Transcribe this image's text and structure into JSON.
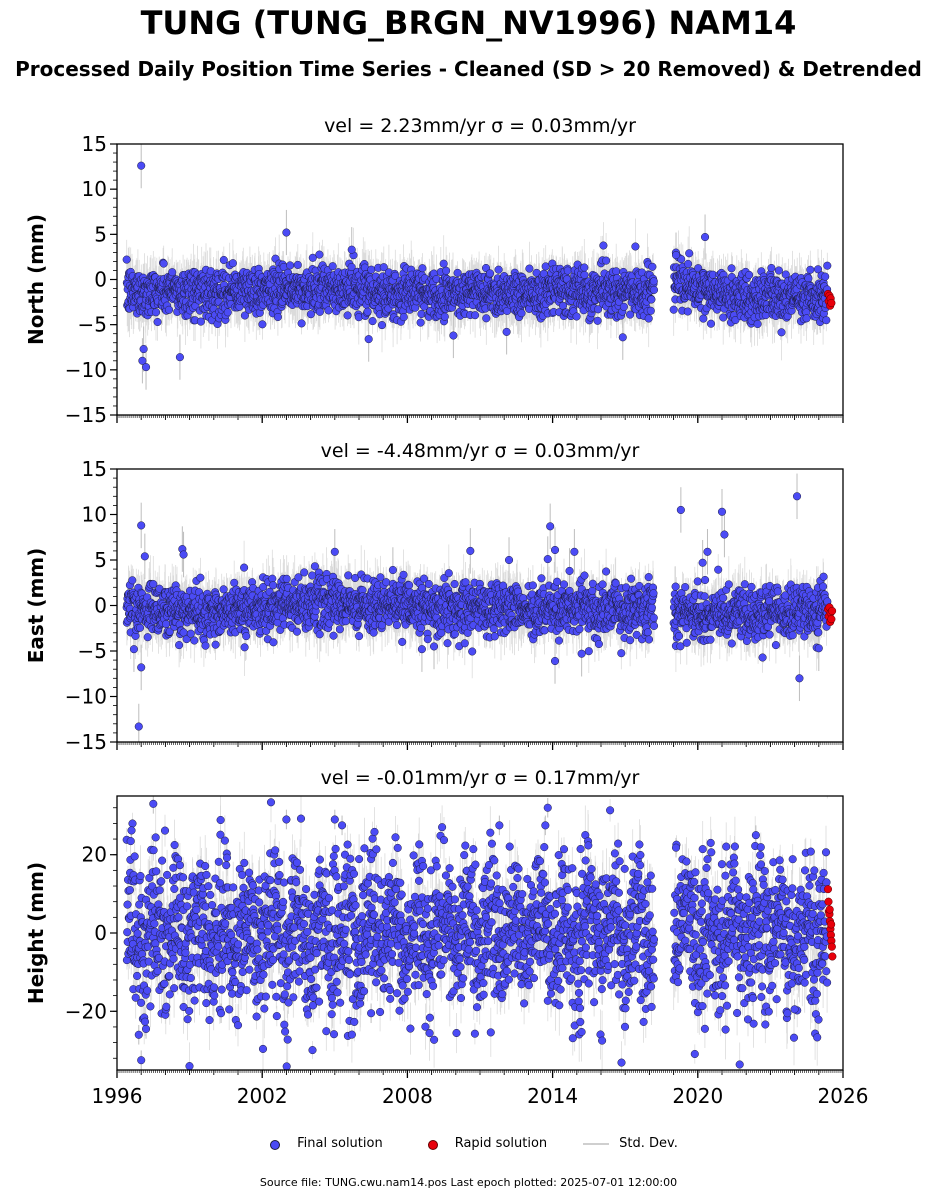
{
  "header": {
    "title": "TUNG (TUNG_BRGN_NV1996) NAM14",
    "subtitle": "Processed Daily Position Time Series - Cleaned (SD > 20 Removed) & Detrended"
  },
  "colors": {
    "final": "#4b4bf5",
    "rapid": "#e8000b",
    "std": "#bdbdbd",
    "marker_edge": "#1c1c3c"
  },
  "chart_data": {
    "type": "scatter",
    "x_range": [
      1996,
      2026
    ],
    "x_ticks": [
      1996,
      2002,
      2008,
      2014,
      2020,
      2026
    ],
    "data_gap": [
      2018.2,
      2019.0
    ],
    "panels": [
      {
        "id": "north",
        "title": "vel = 2.23mm/yr   σ = 0.03mm/yr",
        "ylabel": "North (mm)",
        "ylim": [
          -15,
          15
        ],
        "y_ticks": [
          -15,
          -10,
          -5,
          0,
          5,
          10,
          15
        ],
        "y_tick_labels": [
          "−15",
          "−10",
          "−5",
          "0",
          "5",
          "10",
          "15"
        ],
        "baseline": [
          [
            1996.4,
            -1.4
          ],
          [
            2005.9,
            -1.1
          ],
          [
            2006.0,
            -1.5
          ],
          [
            2018.1,
            -1.3
          ],
          [
            2019.0,
            -0.4
          ],
          [
            2021.2,
            -1.9
          ],
          [
            2025.5,
            -2.1
          ]
        ],
        "noise": 1.3,
        "std_dev": 1.8,
        "outliers": [
          [
            1997.0,
            12.6
          ],
          [
            1997.05,
            -9.0
          ],
          [
            1997.1,
            -7.7
          ],
          [
            1997.2,
            -9.7
          ],
          [
            1998.6,
            -8.6
          ],
          [
            2003.0,
            5.2
          ],
          [
            2006.4,
            -6.6
          ],
          [
            2005.7,
            3.3
          ],
          [
            2020.3,
            4.7
          ],
          [
            2019.1,
            2.7
          ],
          [
            2009.9,
            -6.2
          ],
          [
            2016.9,
            -6.4
          ],
          [
            2012.1,
            -5.8
          ]
        ],
        "rapid": [
          [
            2025.38,
            -1.6
          ],
          [
            2025.41,
            -2.4
          ],
          [
            2025.44,
            -1.8
          ],
          [
            2025.47,
            -2.9
          ],
          [
            2025.49,
            -2.1
          ],
          [
            2025.52,
            -2.6
          ]
        ]
      },
      {
        "id": "east",
        "title": "vel = -4.48mm/yr   σ = 0.03mm/yr",
        "ylabel": "East (mm)",
        "ylim": [
          -15,
          15
        ],
        "y_ticks": [
          -15,
          -10,
          -5,
          0,
          5,
          10,
          15
        ],
        "y_tick_labels": [
          "−15",
          "−10",
          "−5",
          "0",
          "5",
          "10",
          "15"
        ],
        "baseline": [
          [
            1996.4,
            -0.3
          ],
          [
            2000.0,
            -0.7
          ],
          [
            2004.0,
            0.3
          ],
          [
            2008.0,
            0.0
          ],
          [
            2012.0,
            -0.4
          ],
          [
            2018.1,
            -0.3
          ],
          [
            2019.0,
            -1.0
          ],
          [
            2022.0,
            -0.7
          ],
          [
            2025.5,
            -0.5
          ]
        ],
        "noise": 1.4,
        "std_dev": 1.8,
        "outliers": [
          [
            1997.0,
            8.8
          ],
          [
            1997.15,
            5.4
          ],
          [
            1996.9,
            -13.3
          ],
          [
            1997.0,
            -6.8
          ],
          [
            1996.7,
            -4.8
          ],
          [
            1998.7,
            6.2
          ],
          [
            1998.75,
            5.6
          ],
          [
            2005.0,
            5.9
          ],
          [
            2010.6,
            6.0
          ],
          [
            2012.2,
            5.0
          ],
          [
            2013.9,
            8.7
          ],
          [
            2014.1,
            6.1
          ],
          [
            2013.8,
            5.1
          ],
          [
            2014.9,
            5.9
          ],
          [
            2014.1,
            -6.1
          ],
          [
            2014.7,
            3.8
          ],
          [
            2015.2,
            -5.3
          ],
          [
            2019.3,
            10.5
          ],
          [
            2021.0,
            10.3
          ],
          [
            2021.1,
            7.8
          ],
          [
            2020.4,
            5.9
          ],
          [
            2020.2,
            4.7
          ],
          [
            2024.1,
            12.0
          ],
          [
            2024.2,
            -8.0
          ],
          [
            2025.0,
            -4.7
          ],
          [
            2007.4,
            3.9
          ],
          [
            2008.6,
            -4.8
          ],
          [
            2009.1,
            -4.5
          ]
        ],
        "rapid": [
          [
            2025.38,
            -0.4
          ],
          [
            2025.41,
            -1.2
          ],
          [
            2025.44,
            -0.2
          ],
          [
            2025.47,
            -1.8
          ],
          [
            2025.49,
            -0.8
          ],
          [
            2025.52,
            -1.5
          ],
          [
            2025.55,
            -0.6
          ]
        ]
      },
      {
        "id": "height",
        "title": "vel = -0.01mm/yr   σ = 0.17mm/yr",
        "ylabel": "Height (mm)",
        "ylim": [
          -35,
          35
        ],
        "y_ticks": [
          -20,
          0,
          20
        ],
        "y_tick_labels": [
          "−20",
          "0",
          "20"
        ],
        "baseline": [
          [
            1996.4,
            0.0
          ],
          [
            2025.5,
            0.0
          ]
        ],
        "noise": 9.5,
        "std_dev": 4.5,
        "seasonal_amp": 5,
        "outliers": [
          [
            1997.5,
            33.0
          ],
          [
            1996.9,
            -26.0
          ],
          [
            1997.0,
            -32.5
          ],
          [
            1997.2,
            -24.5
          ],
          [
            2003.0,
            29.0
          ],
          [
            2005.0,
            29.0
          ],
          [
            2005.3,
            27.5
          ],
          [
            2006.5,
            -20.5
          ],
          [
            2011.8,
            27.5
          ],
          [
            2013.8,
            32.0
          ],
          [
            2013.7,
            27.5
          ],
          [
            2024.0,
            -19.5
          ],
          [
            2019.1,
            21.8
          ],
          [
            1996.6,
            26.2
          ],
          [
            2022.4,
            25.0
          ],
          [
            2000.3,
            -20.5
          ]
        ],
        "rapid": [
          [
            2025.38,
            11.2
          ],
          [
            2025.4,
            8.0
          ],
          [
            2025.42,
            5.5
          ],
          [
            2025.44,
            4.8
          ],
          [
            2025.46,
            3.0
          ],
          [
            2025.48,
            1.0
          ],
          [
            2025.5,
            -0.5
          ],
          [
            2025.52,
            -2.0
          ],
          [
            2025.54,
            -3.5
          ],
          [
            2025.56,
            -6.0
          ],
          [
            2025.45,
            6.0
          ],
          [
            2025.51,
            2.2
          ]
        ]
      }
    ],
    "legend": {
      "placement": "bottom-center",
      "entries": [
        "Final solution",
        "Rapid solution",
        "Std. Dev."
      ]
    },
    "footer": "Source file: TUNG.cwu.nam14.pos  Last epoch plotted: 2025-07-01 12:00:00"
  }
}
